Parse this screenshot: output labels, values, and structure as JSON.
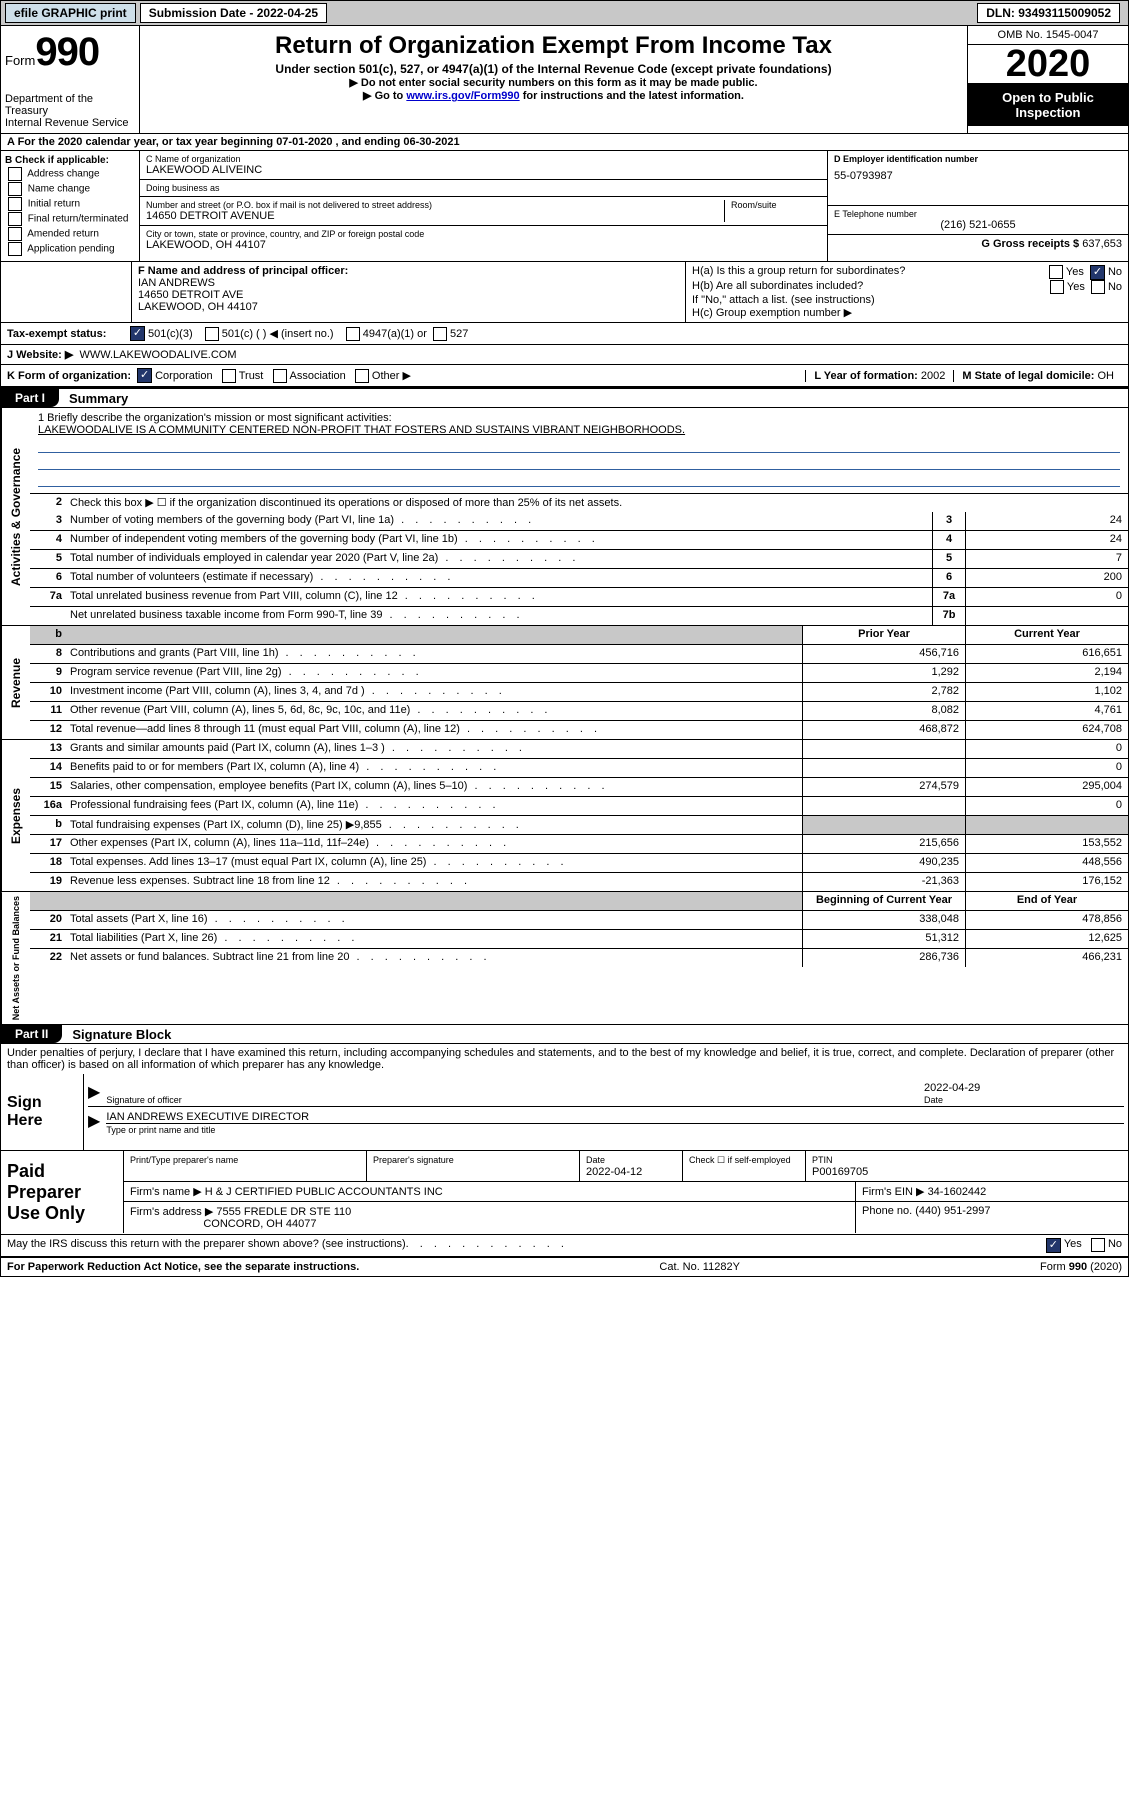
{
  "topbar": {
    "efile": "efile GRAPHIC print",
    "submission_label": "Submission Date",
    "submission_date": "2022-04-25",
    "dln_label": "DLN:",
    "dln": "93493115009052"
  },
  "header": {
    "form_word": "Form",
    "form_num": "990",
    "dept": "Department of the Treasury\nInternal Revenue Service",
    "title": "Return of Organization Exempt From Income Tax",
    "sub1": "Under section 501(c), 527, or 4947(a)(1) of the Internal Revenue Code (except private foundations)",
    "sub2": "▶ Do not enter social security numbers on this form as it may be made public.",
    "sub3_pre": "▶ Go to ",
    "sub3_link": "www.irs.gov/Form990",
    "sub3_post": " for instructions and the latest information.",
    "omb": "OMB No. 1545-0047",
    "year": "2020",
    "inspection": "Open to Public Inspection"
  },
  "row_a": "A   For the 2020 calendar year, or tax year beginning 07-01-2020    , and ending 06-30-2021",
  "section_b": {
    "label": "B Check if applicable:",
    "options": [
      "Address change",
      "Name change",
      "Initial return",
      "Final return/terminated",
      "Amended return",
      "Application pending"
    ]
  },
  "section_c": {
    "name_label": "C Name of organization",
    "name": "LAKEWOOD ALIVEINC",
    "dba_label": "Doing business as",
    "dba": "",
    "street_label": "Number and street (or P.O. box if mail is not delivered to street address)",
    "room_label": "Room/suite",
    "street": "14650 DETROIT AVENUE",
    "city_label": "City or town, state or province, country, and ZIP or foreign postal code",
    "city": "LAKEWOOD, OH  44107"
  },
  "section_d": {
    "label": "D Employer identification number",
    "value": "55-0793987"
  },
  "section_e": {
    "label": "E Telephone number",
    "value": "(216) 521-0655"
  },
  "section_g": {
    "label": "G Gross receipts $",
    "value": "637,653"
  },
  "section_f": {
    "label": "F Name and address of principal officer:",
    "name": "IAN ANDREWS",
    "street": "14650 DETROIT AVE",
    "city": "LAKEWOOD, OH  44107"
  },
  "section_h": {
    "ha": "H(a)  Is this a group return for subordinates?",
    "hb": "H(b)  Are all subordinates included?",
    "hb_note": "If \"No,\" attach a list. (see instructions)",
    "hc": "H(c)  Group exemption number ▶",
    "yes": "Yes",
    "no": "No"
  },
  "tax_row": {
    "label": "Tax-exempt status:",
    "opt1": "501(c)(3)",
    "opt2": "501(c) (   ) ◀ (insert no.)",
    "opt3": "4947(a)(1) or",
    "opt4": "527"
  },
  "website": {
    "label": "J    Website: ▶",
    "value": "WWW.LAKEWOODALIVE.COM"
  },
  "k_row": {
    "label": "K Form of organization:",
    "corp": "Corporation",
    "trust": "Trust",
    "assoc": "Association",
    "other": "Other ▶",
    "l_label": "L Year of formation:",
    "l_val": "2002",
    "m_label": "M State of legal domicile:",
    "m_val": "OH"
  },
  "part1": {
    "tab": "Part I",
    "title": "Summary",
    "line1_label": "1   Briefly describe the organization's mission or most significant activities:",
    "mission": "LAKEWOODALIVE IS A COMMUNITY CENTERED NON-PROFIT THAT FOSTERS AND SUSTAINS VIBRANT NEIGHBORHOODS.",
    "line2": "Check this box ▶ ☐  if the organization discontinued its operations or disposed of more than 25% of its net assets.",
    "col_prior": "Prior Year",
    "col_current": "Current Year",
    "col_begin": "Beginning of Current Year",
    "col_end": "End of Year",
    "lines_gov": [
      {
        "n": "3",
        "d": "Number of voting members of the governing body (Part VI, line 1a)",
        "nb": "3",
        "v": "24"
      },
      {
        "n": "4",
        "d": "Number of independent voting members of the governing body (Part VI, line 1b)",
        "nb": "4",
        "v": "24"
      },
      {
        "n": "5",
        "d": "Total number of individuals employed in calendar year 2020 (Part V, line 2a)",
        "nb": "5",
        "v": "7"
      },
      {
        "n": "6",
        "d": "Total number of volunteers (estimate if necessary)",
        "nb": "6",
        "v": "200"
      },
      {
        "n": "7a",
        "d": "Total unrelated business revenue from Part VIII, column (C), line 12",
        "nb": "7a",
        "v": "0"
      },
      {
        "n": "",
        "d": "Net unrelated business taxable income from Form 990-T, line 39",
        "nb": "7b",
        "v": ""
      }
    ],
    "lines_rev": [
      {
        "n": "8",
        "d": "Contributions and grants (Part VIII, line 1h)",
        "p": "456,716",
        "c": "616,651"
      },
      {
        "n": "9",
        "d": "Program service revenue (Part VIII, line 2g)",
        "p": "1,292",
        "c": "2,194"
      },
      {
        "n": "10",
        "d": "Investment income (Part VIII, column (A), lines 3, 4, and 7d )",
        "p": "2,782",
        "c": "1,102"
      },
      {
        "n": "11",
        "d": "Other revenue (Part VIII, column (A), lines 5, 6d, 8c, 9c, 10c, and 11e)",
        "p": "8,082",
        "c": "4,761"
      },
      {
        "n": "12",
        "d": "Total revenue—add lines 8 through 11 (must equal Part VIII, column (A), line 12)",
        "p": "468,872",
        "c": "624,708"
      }
    ],
    "lines_exp": [
      {
        "n": "13",
        "d": "Grants and similar amounts paid (Part IX, column (A), lines 1–3 )",
        "p": "",
        "c": "0"
      },
      {
        "n": "14",
        "d": "Benefits paid to or for members (Part IX, column (A), line 4)",
        "p": "",
        "c": "0"
      },
      {
        "n": "15",
        "d": "Salaries, other compensation, employee benefits (Part IX, column (A), lines 5–10)",
        "p": "274,579",
        "c": "295,004"
      },
      {
        "n": "16a",
        "d": "Professional fundraising fees (Part IX, column (A), line 11e)",
        "p": "",
        "c": "0"
      },
      {
        "n": "b",
        "d": "Total fundraising expenses (Part IX, column (D), line 25) ▶9,855",
        "p": "GREY",
        "c": "GREY"
      },
      {
        "n": "17",
        "d": "Other expenses (Part IX, column (A), lines 11a–11d, 11f–24e)",
        "p": "215,656",
        "c": "153,552"
      },
      {
        "n": "18",
        "d": "Total expenses. Add lines 13–17 (must equal Part IX, column (A), line 25)",
        "p": "490,235",
        "c": "448,556"
      },
      {
        "n": "19",
        "d": "Revenue less expenses. Subtract line 18 from line 12",
        "p": "-21,363",
        "c": "176,152"
      }
    ],
    "lines_net": [
      {
        "n": "20",
        "d": "Total assets (Part X, line 16)",
        "p": "338,048",
        "c": "478,856"
      },
      {
        "n": "21",
        "d": "Total liabilities (Part X, line 26)",
        "p": "51,312",
        "c": "12,625"
      },
      {
        "n": "22",
        "d": "Net assets or fund balances. Subtract line 21 from line 20",
        "p": "286,736",
        "c": "466,231"
      }
    ],
    "side_gov": "Activities & Governance",
    "side_rev": "Revenue",
    "side_exp": "Expenses",
    "side_net": "Net Assets or Fund Balances"
  },
  "part2": {
    "tab": "Part II",
    "title": "Signature Block",
    "penalty": "Under penalties of perjury, I declare that I have examined this return, including accompanying schedules and statements, and to the best of my knowledge and belief, it is true, correct, and complete. Declaration of preparer (other than officer) is based on all information of which preparer has any knowledge.",
    "sign_here": "Sign Here",
    "sig_officer": "Signature of officer",
    "date_label": "Date",
    "date_val": "2022-04-29",
    "name_title": "IAN ANDREWS  EXECUTIVE DIRECTOR",
    "type_label": "Type or print name and title"
  },
  "preparer": {
    "label": "Paid Preparer Use Only",
    "h1": "Print/Type preparer's name",
    "h2": "Preparer's signature",
    "h3": "Date",
    "h3v": "2022-04-12",
    "h4": "Check ☐  if self-employed",
    "h5": "PTIN",
    "h5v": "P00169705",
    "firm_name_lbl": "Firm's name      ▶",
    "firm_name": "H & J CERTIFIED PUBLIC ACCOUNTANTS INC",
    "firm_ein_lbl": "Firm's EIN ▶",
    "firm_ein": "34-1602442",
    "firm_addr_lbl": "Firm's address ▶",
    "firm_addr1": "7555 FREDLE DR STE 110",
    "firm_addr2": "CONCORD, OH  44077",
    "phone_lbl": "Phone no.",
    "phone": "(440) 951-2997"
  },
  "irs_discuss": {
    "text": "May the IRS discuss this return with the preparer shown above? (see instructions)",
    "yes": "Yes",
    "no": "No"
  },
  "footer": {
    "left": "For Paperwork Reduction Act Notice, see the separate instructions.",
    "mid": "Cat. No. 11282Y",
    "right": "Form 990 (2020)"
  }
}
